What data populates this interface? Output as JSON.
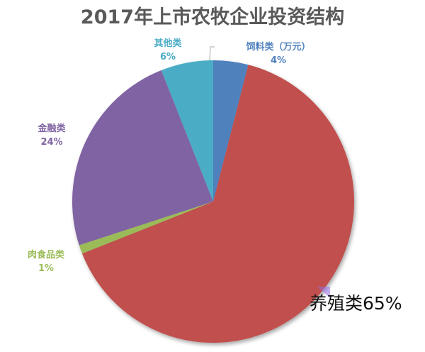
{
  "title": "2017年上市农牧企业投资结构",
  "chart_data": {
    "type": "pie",
    "title": "2017年上市农牧企业投资结构",
    "start_angle_deg": 0,
    "direction": "clockwise",
    "slices": [
      {
        "label": "饲料类（万元）",
        "value": 4,
        "pct_label": "4%",
        "color": "#4F81BD"
      },
      {
        "label": "养殖类",
        "value": 65,
        "pct_label": "65%",
        "color": "#C0504D"
      },
      {
        "label": "肉食品类",
        "value": 1,
        "pct_label": "1%",
        "color": "#9BBB59"
      },
      {
        "label": "金融类",
        "value": 24,
        "pct_label": "24%",
        "color": "#8064A2"
      },
      {
        "label": "其他类",
        "value": 6,
        "pct_label": "6%",
        "color": "#4BACC6"
      }
    ],
    "legend": "none",
    "data_labels": "outside with category name and percent"
  },
  "labels": {
    "feed": {
      "name": "饲料类（万元）",
      "pct": "4%"
    },
    "breeding": {
      "name": "养殖类",
      "pct": "65%"
    },
    "meat": {
      "name": "肉食品类",
      "pct": "1%"
    },
    "finance": {
      "name": "金融类",
      "pct": "24%"
    },
    "other": {
      "name": "其他类",
      "pct": "6%"
    }
  }
}
